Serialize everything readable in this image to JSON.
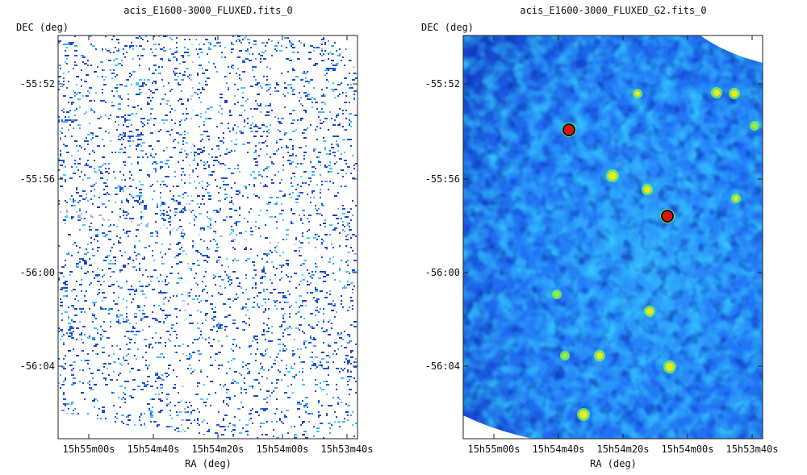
{
  "panels": [
    {
      "id": "left",
      "title": "acis_E1600-3000_FLUXED.fits_0",
      "ylabel": "DEC (deg)",
      "xlabel": "RA (deg)",
      "yticks": [
        "-55:52",
        "-55:56",
        "-56:00",
        "-56:04"
      ],
      "xticks": [
        "15h55m00s",
        "15h54m40s",
        "15h54m20s",
        "15h54m00s",
        "15h53m40s"
      ],
      "style": "sparse"
    },
    {
      "id": "right",
      "title": "acis_E1600-3000_FLUXED_G2.fits_0",
      "ylabel": "DEC (deg)",
      "xlabel": "RA (deg)",
      "yticks": [
        "-55:52",
        "-55:56",
        "-56:00",
        "-56:04"
      ],
      "xticks": [
        "15h55m00s",
        "15h54m40s",
        "15h54m20s",
        "15h54m00s",
        "15h53m40s"
      ],
      "style": "smoothed"
    }
  ],
  "colors": {
    "sparse_low": "#1e4fd8",
    "sparse_mid": "#3aa0ff",
    "smooth_bg": "#2a8fff",
    "smooth_dark": "#0b1fb0",
    "smooth_hot": "#f2e81a",
    "smooth_peak": "#e01010",
    "frame": "#222222"
  }
}
